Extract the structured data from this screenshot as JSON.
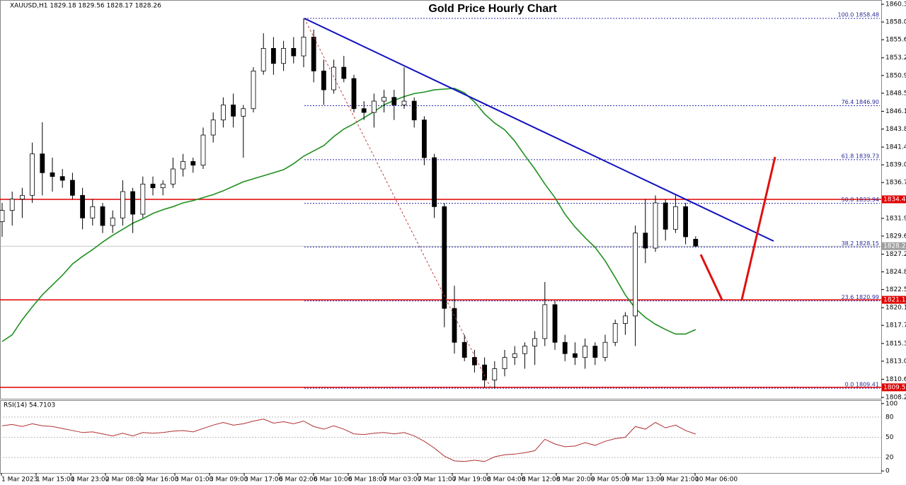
{
  "chart_data": {
    "type": "candlestick",
    "title": "Gold Price Hourly Chart",
    "header": "XAUUSD,H1  1829.18 1829.56 1828.17 1828.26",
    "x_labels": [
      "1 Mar 2023",
      "1 Mar 15:00",
      "1 Mar 23:00",
      "2 Mar 08:00",
      "2 Mar 16:00",
      "3 Mar 01:00",
      "3 Mar 09:00",
      "3 Mar 17:00",
      "6 Mar 02:00",
      "6 Mar 10:00",
      "6 Mar 18:00",
      "7 Mar 03:00",
      "7 Mar 11:00",
      "7 Mar 19:00",
      "8 Mar 04:00",
      "8 Mar 12:00",
      "8 Mar 20:00",
      "9 Mar 05:00",
      "9 Mar 13:00",
      "9 Mar 21:00",
      "10 Mar 06:00"
    ],
    "open": [
      1831.5,
      1833,
      1834.5,
      1835,
      1840.5,
      1838,
      1837.5,
      1837,
      1835,
      1832,
      1833.5,
      1831,
      1832,
      1835.5,
      1832.5,
      1836.5,
      1836,
      1836.5,
      1838.5,
      1839.5,
      1839,
      1843,
      1845,
      1847,
      1845.5,
      1846.5,
      1851.5,
      1854.5,
      1852.5,
      1854.5,
      1853.5,
      1856,
      1851.5,
      1849,
      1852,
      1850.5,
      1846.5,
      1846,
      1847.5,
      1848,
      1847,
      1847.5,
      1845,
      1840,
      1833.5,
      1820,
      1815.5,
      1813.5,
      1812.5,
      1810.5,
      1812,
      1813.5,
      1814,
      1815,
      1816,
      1820.5,
      1815.5,
      1814,
      1813.5,
      1815,
      1813.5,
      1815.5,
      1818,
      1819,
      1830,
      1828,
      1834,
      1830.5,
      1833.5,
      1829.18
    ],
    "high": [
      1834,
      1835.5,
      1836,
      1842,
      1844.7,
      1840,
      1838.5,
      1838,
      1836,
      1834.5,
      1834,
      1833,
      1837,
      1836,
      1837.5,
      1837.5,
      1837,
      1840,
      1840.5,
      1840,
      1844,
      1846,
      1848,
      1848.5,
      1847,
      1852,
      1856.5,
      1856,
      1855.5,
      1856,
      1858.5,
      1857,
      1853,
      1853,
      1853.5,
      1851,
      1847.5,
      1848.5,
      1849,
      1849,
      1852,
      1848,
      1845.5,
      1840.5,
      1834,
      1823,
      1816.5,
      1814.5,
      1813.5,
      1813,
      1814.5,
      1815,
      1815.5,
      1817,
      1823.5,
      1821,
      1816.5,
      1815.5,
      1816,
      1815.5,
      1816.5,
      1818.5,
      1819.5,
      1831,
      1834.5,
      1835,
      1834.5,
      1835,
      1834,
      1829.56
    ],
    "low": [
      1829.5,
      1831,
      1832,
      1834,
      1835,
      1835.5,
      1836,
      1834.5,
      1830.5,
      1831,
      1830,
      1830,
      1831,
      1830,
      1832,
      1835,
      1835,
      1836,
      1837.5,
      1838,
      1838.5,
      1842,
      1844,
      1844,
      1840,
      1846,
      1851,
      1851,
      1851.5,
      1852.5,
      1852,
      1850,
      1847,
      1848.5,
      1850,
      1846,
      1845,
      1844,
      1846,
      1845,
      1846.5,
      1844,
      1839,
      1832,
      1817.5,
      1814,
      1813,
      1811.5,
      1809.5,
      1809.4,
      1811,
      1812.5,
      1812,
      1812.5,
      1815,
      1814.5,
      1813,
      1812.5,
      1812,
      1812.5,
      1813,
      1815,
      1816.5,
      1815,
      1826,
      1827.5,
      1829,
      1830,
      1828.5,
      1828.17
    ],
    "close": [
      1833,
      1834.5,
      1835,
      1840.5,
      1838,
      1837.5,
      1837,
      1835,
      1832,
      1833.5,
      1831,
      1832,
      1835.5,
      1832.5,
      1836.5,
      1836,
      1836.5,
      1838.5,
      1839.5,
      1839,
      1843,
      1845,
      1847,
      1845.5,
      1846.5,
      1851.5,
      1854.5,
      1852.5,
      1854.5,
      1853.5,
      1856,
      1851.5,
      1849,
      1852,
      1850.5,
      1846.5,
      1846,
      1847.5,
      1848,
      1847,
      1847.5,
      1845,
      1840,
      1833.5,
      1820,
      1815.5,
      1813.5,
      1812.5,
      1810.5,
      1812,
      1813.5,
      1814,
      1815,
      1816,
      1820.5,
      1815.5,
      1814,
      1813.5,
      1815,
      1813.5,
      1815.5,
      1818,
      1819,
      1830,
      1828,
      1834,
      1830.5,
      1833.5,
      1829.5,
      1828.26
    ],
    "ma_values": [
      1815.6,
      1816.5,
      1818.5,
      1820.2,
      1821.8,
      1823.1,
      1824.4,
      1825.9,
      1826.9,
      1827.8,
      1828.8,
      1829.7,
      1830.5,
      1831.3,
      1831.9,
      1832.6,
      1833.1,
      1833.5,
      1834.0,
      1834.3,
      1834.7,
      1835.1,
      1835.6,
      1836.2,
      1836.8,
      1837.2,
      1837.6,
      1838.0,
      1838.4,
      1839.2,
      1840.2,
      1840.9,
      1841.6,
      1842.8,
      1843.8,
      1844.5,
      1845.3,
      1846.1,
      1847.0,
      1847.6,
      1848.1,
      1848.5,
      1848.7,
      1849.0,
      1849.1,
      1849.2,
      1848.6,
      1847.4,
      1845.8,
      1844.6,
      1843.7,
      1842.2,
      1840.3,
      1838.5,
      1836.5,
      1834.7,
      1832.5,
      1830.8,
      1829.4,
      1828.1,
      1826.3,
      1824.1,
      1821.8,
      1820.0,
      1818.8,
      1817.9,
      1817.2,
      1816.6,
      1816.6,
      1817.2
    ],
    "ma_color": "#1f8f1f",
    "ylim": [
      1808.11,
      1860.73
    ],
    "yticks": [
      1860.35,
      {
        "value": 1858,
        "label": "1858.00"
      },
      1855.65,
      1853.25,
      {
        "value": 1850.9,
        "label": "1850.90"
      },
      1848.55,
      1846.15,
      {
        "value": 1843.8,
        "label": "1843.80"
      },
      {
        "value": 1841.4,
        "label": "1841.40"
      },
      1839.05,
      {
        "value": 1836.7,
        "label": "1836.70"
      },
      1831.95,
      {
        "value": 1829.6,
        "label": "1829.60"
      },
      {
        "value": 1827.2,
        "label": "1827.20"
      },
      1824.85,
      {
        "value": 1822.5,
        "label": "1822.50"
      },
      {
        "value": 1820.1,
        "label": "1820.10"
      },
      1817.75,
      1815.35,
      {
        "value": 1813,
        "label": "1813.00"
      },
      {
        "value": 1810.6,
        "label": "1810.60"
      },
      {
        "value": 1808.2,
        "label": "1808.20"
      }
    ],
    "hlines": [
      {
        "value": 1834.47,
        "color": "#e00000"
      },
      {
        "value": 1821.14,
        "color": "#e00000"
      },
      {
        "value": 1809.53,
        "color": "#e00000"
      }
    ],
    "price_line": {
      "value": 1828.26,
      "color": "#a0a0a0"
    },
    "fib": [
      {
        "label": "100.0 1858.48",
        "value": 1858.48
      },
      {
        "label": "76.4 1846.90",
        "value": 1846.9
      },
      {
        "label": "61.8 1839.73",
        "value": 1839.73
      },
      {
        "label": "50.0 1833.94",
        "value": 1833.94
      },
      {
        "label": "38.2 1828.15",
        "value": 1828.15
      },
      {
        "label": "23.6 1820.99",
        "value": 1820.99
      },
      {
        "label": "0.0 1809.41",
        "value": 1809.41
      }
    ],
    "rsi": {
      "title": "RSI(14) 54.7103",
      "color": "#b03030",
      "ylim": [
        -3,
        104
      ],
      "yticks": [
        100,
        80,
        50,
        20,
        0
      ],
      "values": [
        67,
        69,
        66,
        70,
        67,
        66,
        63,
        60,
        57,
        58,
        55,
        52,
        56,
        52,
        57,
        56,
        57,
        59,
        60,
        58,
        63,
        68,
        72,
        68,
        70,
        74,
        77,
        71,
        73,
        70,
        74,
        66,
        62,
        67,
        62,
        55,
        54,
        56,
        57,
        55,
        57,
        52,
        44,
        34,
        22,
        15,
        14,
        16,
        14,
        21,
        24,
        25,
        27,
        30,
        47,
        40,
        36,
        37,
        42,
        38,
        44,
        48,
        50,
        66,
        62,
        72,
        64,
        68,
        60,
        54.7103
      ]
    }
  }
}
